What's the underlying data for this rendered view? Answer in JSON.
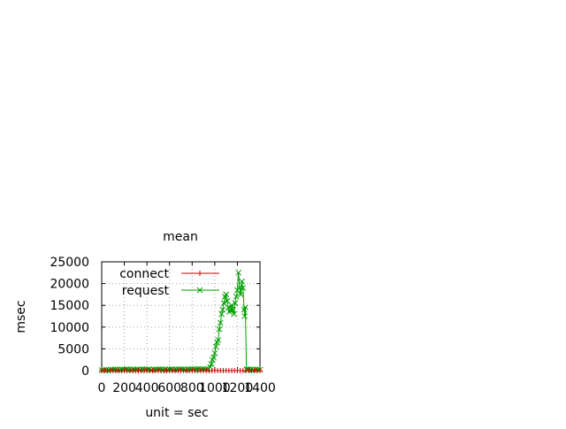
{
  "chart_data": {
    "type": "line",
    "title": "mean",
    "xlabel": "unit = sec",
    "ylabel": "msec",
    "xlim": [
      0,
      1400
    ],
    "ylim": [
      0,
      25000
    ],
    "xticks": [
      "0",
      "200",
      "400",
      "600",
      "800",
      "1000",
      "1200",
      "1400"
    ],
    "yticks": [
      "0",
      "5000",
      "10000",
      "15000",
      "20000",
      "25000"
    ],
    "grid": true,
    "legend_position": "top-left",
    "series": [
      {
        "name": "connect",
        "color": "#cc0000",
        "marker": "plus",
        "x": [
          0,
          25,
          50,
          75,
          100,
          125,
          150,
          175,
          200,
          225,
          250,
          275,
          300,
          325,
          350,
          375,
          400,
          425,
          450,
          475,
          500,
          525,
          550,
          575,
          600,
          625,
          650,
          675,
          700,
          725,
          750,
          775,
          800,
          825,
          850,
          875,
          900,
          925,
          950,
          975,
          1000,
          1025,
          1050,
          1075,
          1100,
          1125,
          1150,
          1175,
          1200,
          1225,
          1250,
          1275,
          1300,
          1325,
          1350,
          1375,
          1400
        ],
        "y": [
          0,
          0,
          0,
          0,
          0,
          0,
          0,
          0,
          0,
          0,
          0,
          0,
          0,
          0,
          0,
          0,
          0,
          0,
          0,
          0,
          0,
          0,
          0,
          0,
          0,
          0,
          0,
          0,
          0,
          0,
          0,
          0,
          0,
          0,
          0,
          0,
          0,
          0,
          0,
          0,
          0,
          0,
          0,
          0,
          0,
          0,
          0,
          0,
          0,
          0,
          0,
          0,
          0,
          0,
          0,
          0,
          0
        ]
      },
      {
        "name": "request",
        "color": "#00a000",
        "marker": "cross",
        "x": [
          0,
          20,
          40,
          60,
          80,
          100,
          120,
          140,
          160,
          180,
          200,
          220,
          240,
          260,
          280,
          300,
          320,
          340,
          360,
          380,
          400,
          420,
          440,
          460,
          480,
          500,
          520,
          540,
          560,
          580,
          600,
          620,
          640,
          660,
          680,
          700,
          720,
          740,
          760,
          780,
          800,
          820,
          840,
          860,
          880,
          900,
          920,
          940,
          960,
          970,
          980,
          990,
          1000,
          1010,
          1020,
          1030,
          1040,
          1050,
          1060,
          1070,
          1080,
          1090,
          1100,
          1110,
          1120,
          1130,
          1140,
          1150,
          1160,
          1170,
          1180,
          1190,
          1200,
          1210,
          1220,
          1230,
          1240,
          1250,
          1260,
          1265,
          1270,
          1280,
          1290,
          1300,
          1320,
          1340,
          1360,
          1380,
          1400
        ],
        "y": [
          100,
          150,
          200,
          150,
          250,
          200,
          300,
          250,
          200,
          300,
          250,
          350,
          300,
          250,
          300,
          200,
          300,
          250,
          350,
          300,
          250,
          300,
          200,
          300,
          250,
          300,
          350,
          250,
          300,
          200,
          300,
          350,
          250,
          300,
          300,
          350,
          300,
          250,
          350,
          300,
          400,
          300,
          350,
          400,
          300,
          350,
          300,
          400,
          800,
          1500,
          2500,
          3000,
          4000,
          5500,
          6500,
          7000,
          9500,
          11000,
          13000,
          14000,
          15500,
          17000,
          17500,
          16000,
          14500,
          13500,
          14000,
          15000,
          14000,
          13000,
          15500,
          17000,
          18500,
          22500,
          19000,
          17500,
          20500,
          19000,
          14000,
          12500,
          14500,
          300,
          200,
          300,
          250,
          200,
          300,
          250,
          200
        ]
      }
    ]
  }
}
